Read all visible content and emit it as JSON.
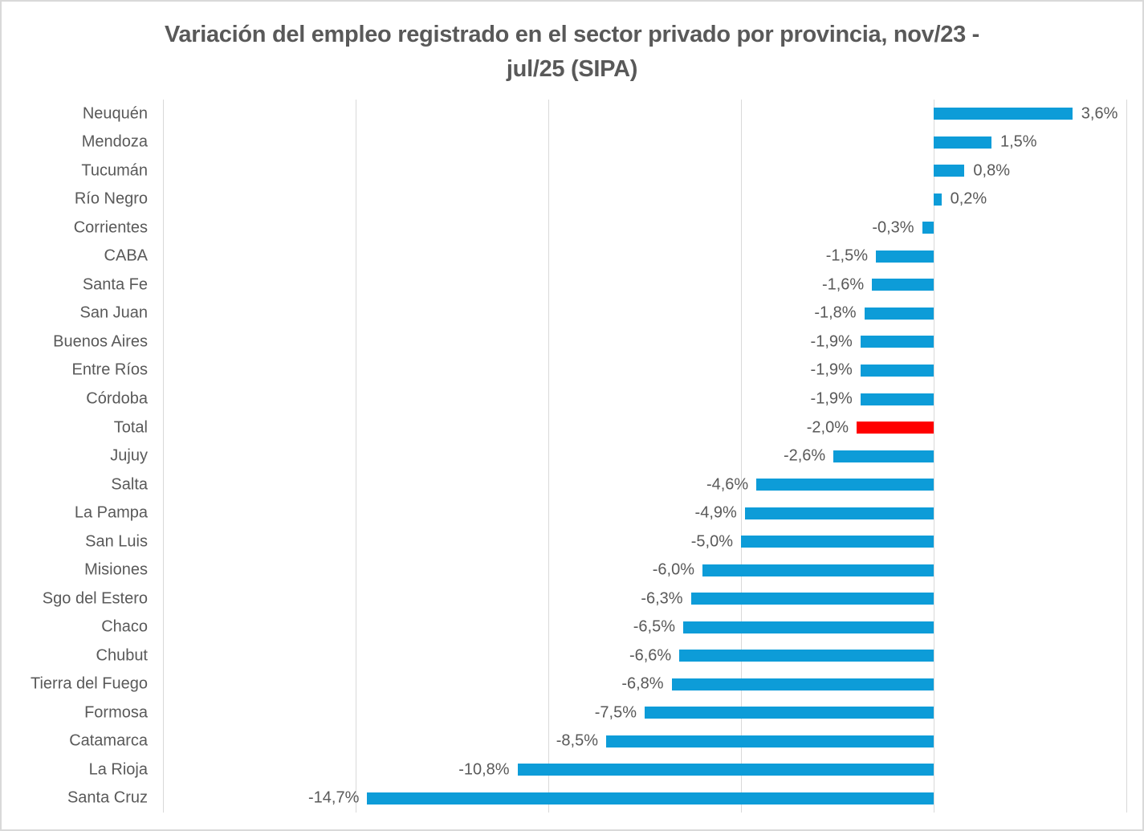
{
  "chart_data": {
    "type": "bar",
    "orientation": "horizontal",
    "title": "Variación del empleo registrado en el sector privado por provincia, nov/23 - jul/25 (SIPA)",
    "title_lines": [
      "Variación del empleo registrado en el sector privado por provincia, nov/23 -",
      "jul/25 (SIPA)"
    ],
    "categories": [
      "Neuquén",
      "Mendoza",
      "Tucumán",
      "Río Negro",
      "Corrientes",
      "CABA",
      "Santa Fe",
      "San Juan",
      "Buenos Aires",
      "Entre Ríos",
      "Córdoba",
      "Total",
      "Jujuy",
      "Salta",
      "La Pampa",
      "San Luis",
      "Misiones",
      "Sgo del Estero",
      "Chaco",
      "Chubut",
      "Tierra del Fuego",
      "Formosa",
      "Catamarca",
      "La Rioja",
      "Santa Cruz"
    ],
    "values": [
      3.6,
      1.5,
      0.8,
      0.2,
      -0.3,
      -1.5,
      -1.6,
      -1.8,
      -1.9,
      -1.9,
      -1.9,
      -2.0,
      -2.6,
      -4.6,
      -4.9,
      -5.0,
      -6.0,
      -6.3,
      -6.5,
      -6.6,
      -6.8,
      -7.5,
      -8.5,
      -10.8,
      -14.7
    ],
    "value_labels": [
      "3,6%",
      "1,5%",
      "0,8%",
      "0,2%",
      "-0,3%",
      "-1,5%",
      "-1,6%",
      "-1,8%",
      "-1,9%",
      "-1,9%",
      "-1,9%",
      "-2,0%",
      "-2,6%",
      "-4,6%",
      "-4,9%",
      "-5,0%",
      "-6,0%",
      "-6,3%",
      "-6,5%",
      "-6,6%",
      "-6,8%",
      "-7,5%",
      "-8,5%",
      "-10,8%",
      "-14,7%"
    ],
    "xlabel": "",
    "ylabel": "",
    "xlim": [
      -20,
      5
    ],
    "gridline_step": 5,
    "grid": "vertical",
    "legend": "none",
    "highlight_category": "Total",
    "colors": {
      "bar": "#0d9cd8",
      "highlight": "#ff0000",
      "text": "#595959",
      "gridline": "#d9d9d9"
    }
  }
}
